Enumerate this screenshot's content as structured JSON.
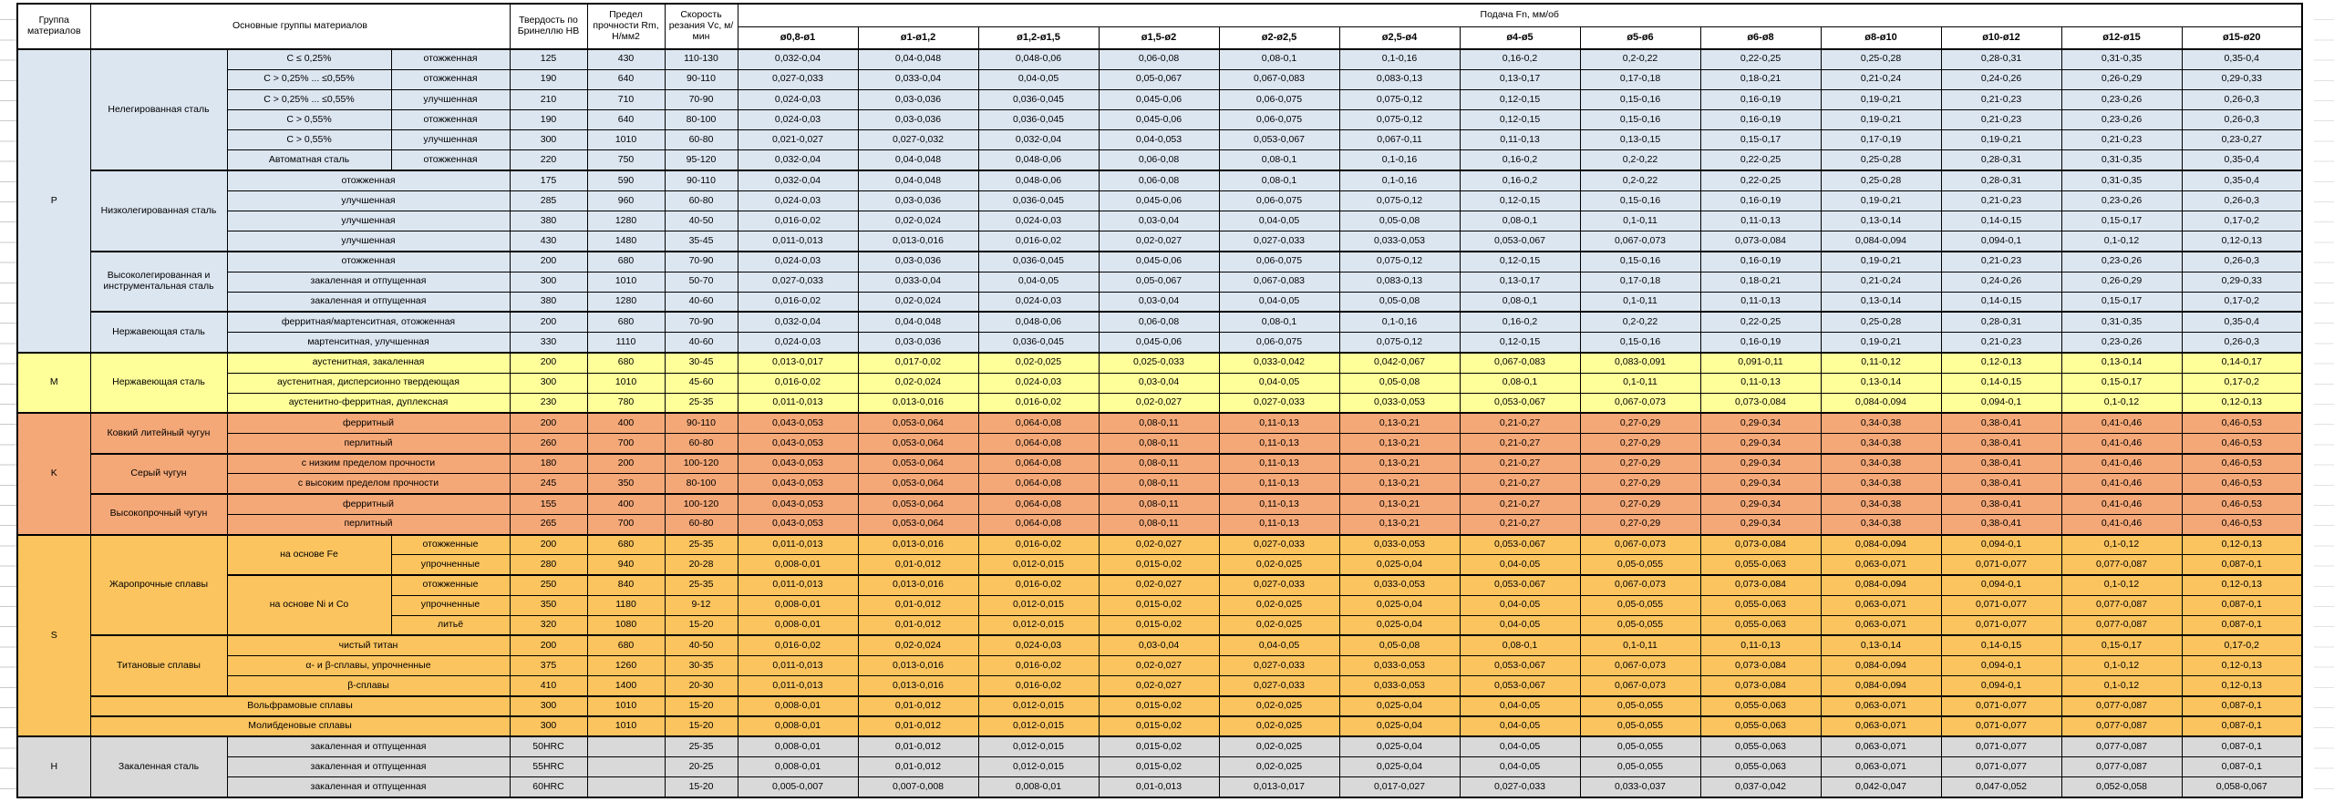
{
  "header": {
    "col_group": "Группа материалов",
    "col_materials": "Основные группы материалов",
    "col_hardness": "Твердость по Бринеллю HB",
    "col_strength": "Предел прочности Rm, Н/мм2",
    "col_speed": "Скорость резания Vc, м/мин",
    "col_feed": "Подача Fn, мм/об",
    "feed_columns": [
      "ø0,8-ø1",
      "ø1-ø1,2",
      "ø1,2-ø1,5",
      "ø1,5-ø2",
      "ø2-ø2,5",
      "ø2,5-ø4",
      "ø4-ø5",
      "ø5-ø6",
      "ø6-ø8",
      "ø8-ø10",
      "ø10-ø12",
      "ø12-ø15",
      "ø15-ø20"
    ]
  },
  "colors": {
    "P": "#dce6f1",
    "M": "#ffff9a",
    "K": "#f4a878",
    "S": "#fcc45e",
    "H": "#d9d9d9"
  },
  "feed_patterns": {
    "A": [
      "0,032-0,04",
      "0,04-0,048",
      "0,048-0,06",
      "0,06-0,08",
      "0,08-0,1",
      "0,1-0,16",
      "0,16-0,2",
      "0,2-0,22",
      "0,22-0,25",
      "0,25-0,28",
      "0,28-0,31",
      "0,31-0,35",
      "0,35-0,4"
    ],
    "B": [
      "0,027-0,033",
      "0,033-0,04",
      "0,04-0,05",
      "0,05-0,067",
      "0,067-0,083",
      "0,083-0,13",
      "0,13-0,17",
      "0,17-0,18",
      "0,18-0,21",
      "0,21-0,24",
      "0,24-0,26",
      "0,26-0,29",
      "0,29-0,33"
    ],
    "C": [
      "0,024-0,03",
      "0,03-0,036",
      "0,036-0,045",
      "0,045-0,06",
      "0,06-0,075",
      "0,075-0,12",
      "0,12-0,15",
      "0,15-0,16",
      "0,16-0,19",
      "0,19-0,21",
      "0,21-0,23",
      "0,23-0,26",
      "0,26-0,3"
    ],
    "D": [
      "0,021-0,027",
      "0,027-0,032",
      "0,032-0,04",
      "0,04-0,053",
      "0,053-0,067",
      "0,067-0,11",
      "0,11-0,13",
      "0,13-0,15",
      "0,15-0,17",
      "0,17-0,19",
      "0,19-0,21",
      "0,21-0,23",
      "0,23-0,27"
    ],
    "E": [
      "0,016-0,02",
      "0,02-0,024",
      "0,024-0,03",
      "0,03-0,04",
      "0,04-0,05",
      "0,05-0,08",
      "0,08-0,1",
      "0,1-0,11",
      "0,11-0,13",
      "0,13-0,14",
      "0,14-0,15",
      "0,15-0,17",
      "0,17-0,2"
    ],
    "F": [
      "0,011-0,013",
      "0,013-0,016",
      "0,016-0,02",
      "0,02-0,027",
      "0,027-0,033",
      "0,033-0,053",
      "0,053-0,067",
      "0,067-0,073",
      "0,073-0,084",
      "0,084-0,094",
      "0,094-0,1",
      "0,1-0,12",
      "0,12-0,13"
    ],
    "G": [
      "0,043-0,053",
      "0,053-0,064",
      "0,064-0,08",
      "0,08-0,11",
      "0,11-0,13",
      "0,13-0,21",
      "0,21-0,27",
      "0,27-0,29",
      "0,29-0,34",
      "0,34-0,38",
      "0,38-0,41",
      "0,41-0,46",
      "0,46-0,53"
    ],
    "H": [
      "0,013-0,017",
      "0,017-0,02",
      "0,02-0,025",
      "0,025-0,033",
      "0,033-0,042",
      "0,042-0,067",
      "0,067-0,083",
      "0,083-0,091",
      "0,091-0,11",
      "0,11-0,12",
      "0,12-0,13",
      "0,13-0,14",
      "0,14-0,17"
    ],
    "I": [
      "0,008-0,01",
      "0,01-0,012",
      "0,012-0,015",
      "0,015-0,02",
      "0,02-0,025",
      "0,025-0,04",
      "0,04-0,05",
      "0,05-0,055",
      "0,055-0,063",
      "0,063-0,071",
      "0,071-0,077",
      "0,077-0,087",
      "0,087-0,1"
    ],
    "J": [
      "0,005-0,007",
      "0,007-0,008",
      "0,008-0,01",
      "0,01-0,013",
      "0,013-0,017",
      "0,017-0,027",
      "0,027-0,033",
      "0,033-0,037",
      "0,037-0,042",
      "0,042-0,047",
      "0,047-0,052",
      "0,052-0,058",
      "0,058-0,067"
    ]
  },
  "groups": [
    {
      "letter": "P",
      "rows": [
        {
          "block": true,
          "cells": [
            {
              "text": "Нелегированная сталь",
              "rs": 6
            },
            {
              "text": "C ≤ 0,25%"
            },
            {
              "text": "отожженная"
            }
          ],
          "hb": "125",
          "rm": "430",
          "vc": "110-130",
          "feed": "A"
        },
        {
          "block": false,
          "cells": [
            {
              "text": "C > 0,25% ... ≤0,55%"
            },
            {
              "text": "отожженная"
            }
          ],
          "hb": "190",
          "rm": "640",
          "vc": "90-110",
          "feed": "B"
        },
        {
          "block": false,
          "cells": [
            {
              "text": "C > 0,25% ... ≤0,55%"
            },
            {
              "text": "улучшенная"
            }
          ],
          "hb": "210",
          "rm": "710",
          "vc": "70-90",
          "feed": "C"
        },
        {
          "block": false,
          "cells": [
            {
              "text": "C > 0,55%"
            },
            {
              "text": "отожженная"
            }
          ],
          "hb": "190",
          "rm": "640",
          "vc": "80-100",
          "feed": "C"
        },
        {
          "block": false,
          "cells": [
            {
              "text": "C > 0,55%"
            },
            {
              "text": "улучшенная"
            }
          ],
          "hb": "300",
          "rm": "1010",
          "vc": "60-80",
          "feed": "D"
        },
        {
          "block": false,
          "cells": [
            {
              "text": "Автоматная сталь"
            },
            {
              "text": "отожженная"
            }
          ],
          "hb": "220",
          "rm": "750",
          "vc": "95-120",
          "feed": "A"
        },
        {
          "block": true,
          "cells": [
            {
              "text": "Низколегированная сталь",
              "rs": 4
            },
            {
              "text": "отожженная",
              "cs": 2
            }
          ],
          "hb": "175",
          "rm": "590",
          "vc": "90-110",
          "feed": "A"
        },
        {
          "block": false,
          "cells": [
            {
              "text": "улучшенная",
              "cs": 2
            }
          ],
          "hb": "285",
          "rm": "960",
          "vc": "60-80",
          "feed": "C"
        },
        {
          "block": false,
          "cells": [
            {
              "text": "улучшенная",
              "cs": 2
            }
          ],
          "hb": "380",
          "rm": "1280",
          "vc": "40-50",
          "feed": "E"
        },
        {
          "block": false,
          "cells": [
            {
              "text": "улучшенная",
              "cs": 2
            }
          ],
          "hb": "430",
          "rm": "1480",
          "vc": "35-45",
          "feed": "F"
        },
        {
          "block": true,
          "cells": [
            {
              "text": "Высоколегированная и инструментальная сталь",
              "rs": 3
            },
            {
              "text": "отожженная",
              "cs": 2
            }
          ],
          "hb": "200",
          "rm": "680",
          "vc": "70-90",
          "feed": "C"
        },
        {
          "block": false,
          "cells": [
            {
              "text": "закаленная и отпущенная",
              "cs": 2
            }
          ],
          "hb": "300",
          "rm": "1010",
          "vc": "50-70",
          "feed": "B"
        },
        {
          "block": false,
          "cells": [
            {
              "text": "закаленная и отпущенная",
              "cs": 2
            }
          ],
          "hb": "380",
          "rm": "1280",
          "vc": "40-60",
          "feed": "E"
        },
        {
          "block": true,
          "cells": [
            {
              "text": "Нержавеющая сталь",
              "rs": 2
            },
            {
              "text": "ферритная/мартенситная, отожженная",
              "cs": 2
            }
          ],
          "hb": "200",
          "rm": "680",
          "vc": "70-90",
          "feed": "A"
        },
        {
          "block": false,
          "cells": [
            {
              "text": "мартенситная, улучшенная",
              "cs": 2
            }
          ],
          "hb": "330",
          "rm": "1110",
          "vc": "40-60",
          "feed": "C"
        }
      ]
    },
    {
      "letter": "M",
      "rows": [
        {
          "block": true,
          "cells": [
            {
              "text": "Нержавеющая сталь",
              "rs": 3
            },
            {
              "text": "аустенитная, закаленная",
              "cs": 2
            }
          ],
          "hb": "200",
          "rm": "680",
          "vc": "30-45",
          "feed": "H"
        },
        {
          "block": false,
          "cells": [
            {
              "text": "аустенитная, дисперсионно твердеющая",
              "cs": 2
            }
          ],
          "hb": "300",
          "rm": "1010",
          "vc": "45-60",
          "feed": "E"
        },
        {
          "block": false,
          "cells": [
            {
              "text": "аустенитно-ферритная, дуплексная",
              "cs": 2
            }
          ],
          "hb": "230",
          "rm": "780",
          "vc": "25-35",
          "feed": "F"
        }
      ]
    },
    {
      "letter": "K",
      "rows": [
        {
          "block": true,
          "cells": [
            {
              "text": "Ковкий литейный чугун",
              "rs": 2
            },
            {
              "text": "ферритный",
              "cs": 2
            }
          ],
          "hb": "200",
          "rm": "400",
          "vc": "90-110",
          "feed": "G"
        },
        {
          "block": false,
          "cells": [
            {
              "text": "перлитный",
              "cs": 2
            }
          ],
          "hb": "260",
          "rm": "700",
          "vc": "60-80",
          "feed": "G"
        },
        {
          "block": true,
          "cells": [
            {
              "text": "Серый чугун",
              "rs": 2
            },
            {
              "text": "с низким пределом прочности",
              "cs": 2
            }
          ],
          "hb": "180",
          "rm": "200",
          "vc": "100-120",
          "feed": "G"
        },
        {
          "block": false,
          "cells": [
            {
              "text": "с высоким пределом прочности",
              "cs": 2
            }
          ],
          "hb": "245",
          "rm": "350",
          "vc": "80-100",
          "feed": "G"
        },
        {
          "block": true,
          "cells": [
            {
              "text": "Высокопрочный чугун",
              "rs": 2
            },
            {
              "text": "ферритный",
              "cs": 2
            }
          ],
          "hb": "155",
          "rm": "400",
          "vc": "100-120",
          "feed": "G"
        },
        {
          "block": false,
          "cells": [
            {
              "text": "перлитный",
              "cs": 2
            }
          ],
          "hb": "265",
          "rm": "700",
          "vc": "60-80",
          "feed": "G"
        }
      ]
    },
    {
      "letter": "S",
      "rows": [
        {
          "block": true,
          "cells": [
            {
              "text": "Жаропрочные сплавы",
              "rs": 5
            },
            {
              "text": "на основе Fe",
              "rs": 2
            },
            {
              "text": "отожженные"
            }
          ],
          "hb": "200",
          "rm": "680",
          "vc": "25-35",
          "feed": "F"
        },
        {
          "block": false,
          "cells": [
            {
              "text": "упрочненные"
            }
          ],
          "hb": "280",
          "rm": "940",
          "vc": "20-28",
          "feed": "I"
        },
        {
          "block": true,
          "cells": [
            {
              "text": "на основе Ni и Co",
              "rs": 3
            },
            {
              "text": "отожженные"
            }
          ],
          "hb": "250",
          "rm": "840",
          "vc": "25-35",
          "feed": "F"
        },
        {
          "block": false,
          "cells": [
            {
              "text": "упрочненные"
            }
          ],
          "hb": "350",
          "rm": "1180",
          "vc": "9-12",
          "feed": "I"
        },
        {
          "block": false,
          "cells": [
            {
              "text": "литьё"
            }
          ],
          "hb": "320",
          "rm": "1080",
          "vc": "15-20",
          "feed": "I"
        },
        {
          "block": true,
          "cells": [
            {
              "text": "Титановые сплавы",
              "rs": 3
            },
            {
              "text": "чистый титан",
              "cs": 2
            }
          ],
          "hb": "200",
          "rm": "680",
          "vc": "40-50",
          "feed": "E"
        },
        {
          "block": false,
          "cells": [
            {
              "text": "α- и β-сплавы, упрочненные",
              "cs": 2
            }
          ],
          "hb": "375",
          "rm": "1260",
          "vc": "30-35",
          "feed": "F"
        },
        {
          "block": false,
          "cells": [
            {
              "text": "β-сплавы",
              "cs": 2
            }
          ],
          "hb": "410",
          "rm": "1400",
          "vc": "20-30",
          "feed": "F"
        },
        {
          "block": true,
          "cells": [
            {
              "text": "Вольфрамовые сплавы",
              "cs": 3
            }
          ],
          "hb": "300",
          "rm": "1010",
          "vc": "15-20",
          "feed": "I"
        },
        {
          "block": true,
          "cells": [
            {
              "text": "Молибденовые сплавы",
              "cs": 3
            }
          ],
          "hb": "300",
          "rm": "1010",
          "vc": "15-20",
          "feed": "I"
        }
      ]
    },
    {
      "letter": "H",
      "rows": [
        {
          "block": true,
          "cells": [
            {
              "text": "Закаленная сталь",
              "rs": 3
            },
            {
              "text": "закаленная и отпущенная",
              "cs": 2
            }
          ],
          "hb": "50HRC",
          "rm": "",
          "vc": "25-35",
          "feed": "I"
        },
        {
          "block": false,
          "cells": [
            {
              "text": "закаленная и отпущенная",
              "cs": 2
            }
          ],
          "hb": "55HRC",
          "rm": "",
          "vc": "20-25",
          "feed": "I"
        },
        {
          "block": false,
          "cells": [
            {
              "text": "закаленная и отпущенная",
              "cs": 2
            }
          ],
          "hb": "60HRC",
          "rm": "",
          "vc": "15-20",
          "feed": "J"
        }
      ]
    }
  ]
}
